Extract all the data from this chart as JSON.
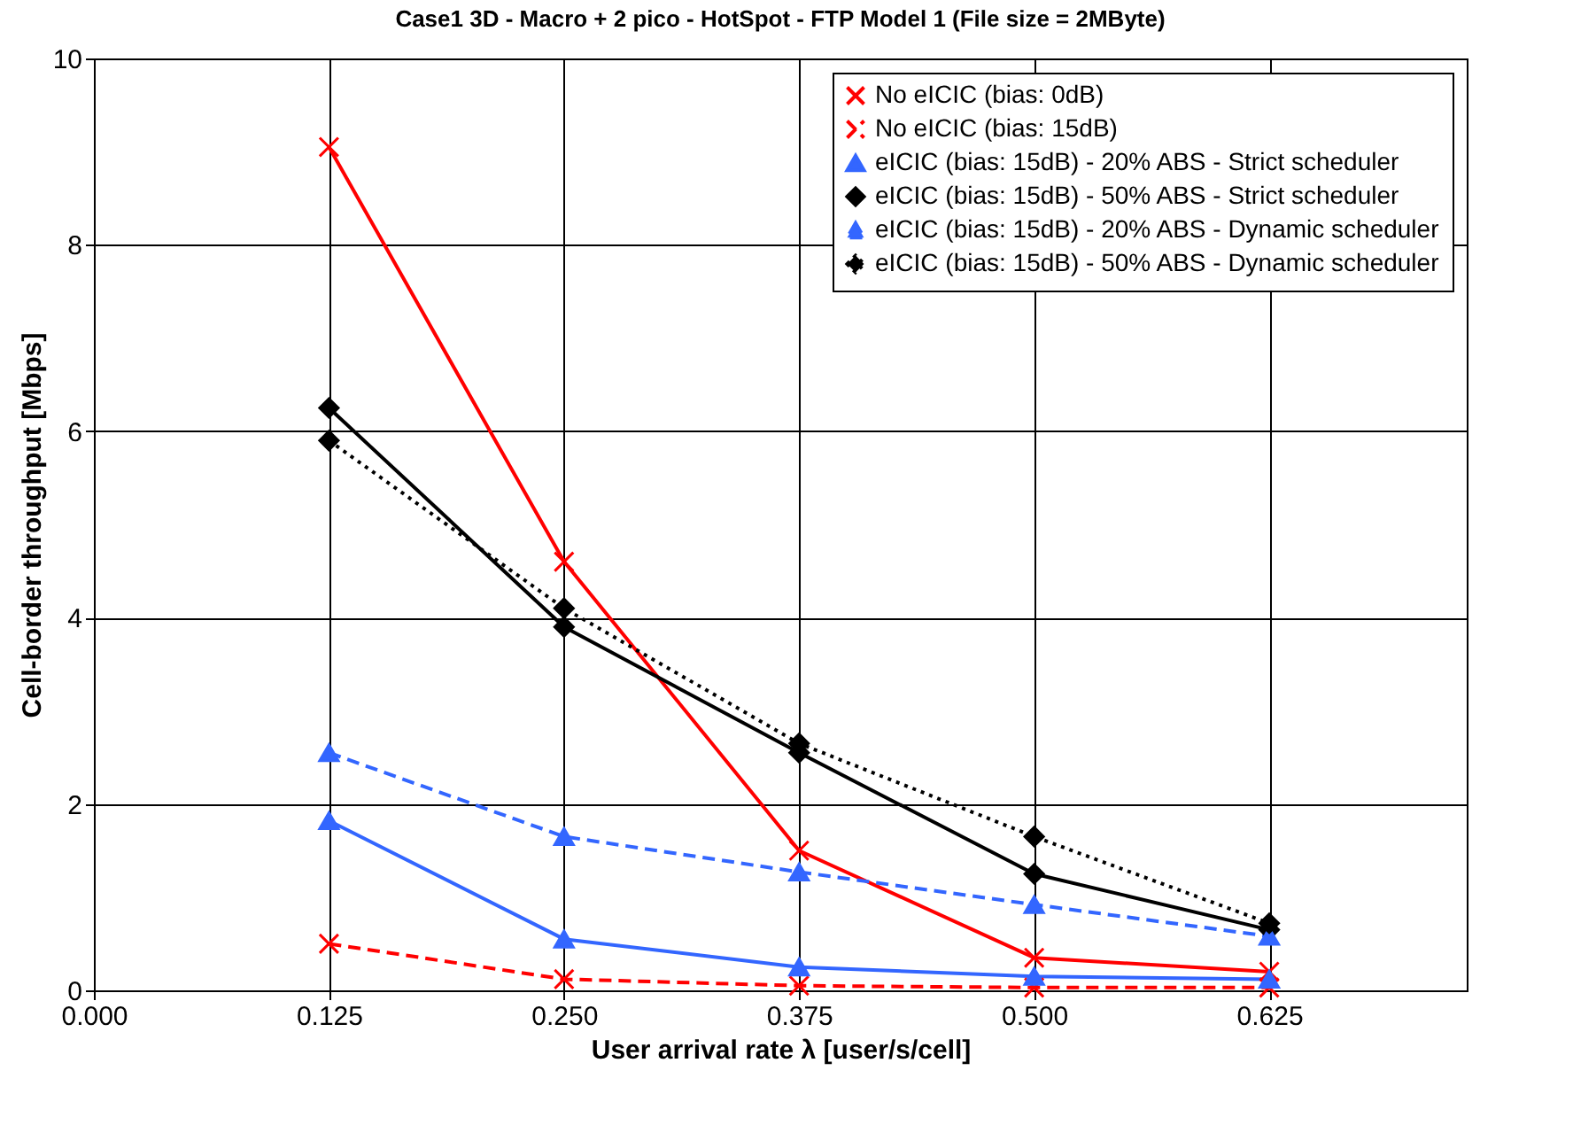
{
  "chart_data": {
    "type": "line",
    "title": "Case1 3D - Macro + 2 pico - HotSpot - FTP Model 1 (File size = 2MByte)",
    "xlabel": "User arrival rate λ [user/s/cell]",
    "ylabel": "Cell-border throughput [Mbps]",
    "x": [
      0.125,
      0.25,
      0.375,
      0.5,
      0.625
    ],
    "series": [
      {
        "name": "No eICIC (bias: 0dB)",
        "color": "#ff0000",
        "marker": "cross",
        "line_style": "solid",
        "values": [
          9.05,
          4.6,
          1.5,
          0.35,
          0.2
        ]
      },
      {
        "name": "No eICIC (bias: 15dB)",
        "color": "#ff0000",
        "marker": "cross",
        "line_style": "dashed",
        "values": [
          0.5,
          0.12,
          0.05,
          0.03,
          0.03
        ]
      },
      {
        "name": "eICIC (bias: 15dB) - 20% ABS - Strict scheduler",
        "color": "#3366ff",
        "marker": "triangle",
        "line_style": "solid",
        "values": [
          1.82,
          0.55,
          0.25,
          0.15,
          0.12
        ]
      },
      {
        "name": "eICIC (bias: 15dB) - 50% ABS - Strict scheduler",
        "color": "#000000",
        "marker": "diamond",
        "line_style": "solid",
        "values": [
          6.25,
          3.9,
          2.55,
          1.25,
          0.65
        ]
      },
      {
        "name": "eICIC (bias: 15dB) - 20% ABS - Dynamic scheduler",
        "color": "#3366ff",
        "marker": "triangle",
        "line_style": "dashed",
        "values": [
          2.55,
          1.65,
          1.27,
          0.92,
          0.58
        ]
      },
      {
        "name": "eICIC (bias: 15dB) - 50% ABS - Dynamic scheduler",
        "color": "#000000",
        "marker": "diamond",
        "line_style": "dotted",
        "values": [
          5.9,
          4.1,
          2.65,
          1.65,
          0.72
        ]
      }
    ],
    "xlim": [
      0,
      0.73
    ],
    "xticks": [
      {
        "value": 0,
        "label": "0.000"
      },
      {
        "value": 0.125,
        "label": "0.125"
      },
      {
        "value": 0.25,
        "label": "0.250"
      },
      {
        "value": 0.375,
        "label": "0.375"
      },
      {
        "value": 0.5,
        "label": "0.500"
      },
      {
        "value": 0.625,
        "label": "0.625"
      }
    ],
    "ylim": [
      0,
      10
    ],
    "yticks": [
      0,
      2,
      4,
      6,
      8,
      10
    ],
    "grid": true,
    "legend": "top right"
  }
}
